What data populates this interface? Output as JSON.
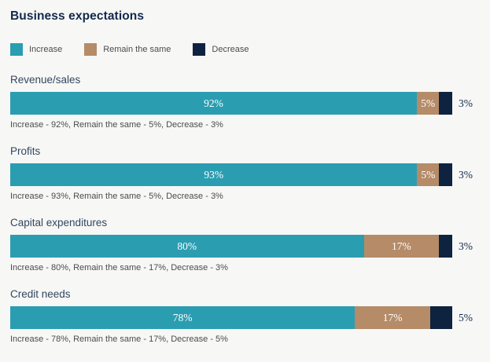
{
  "title": "Business expectations",
  "colors": {
    "background": "#f7f7f6",
    "heading": "#13294b",
    "category": "#33475e",
    "muted": "#4c4c4c",
    "increase": "#2b9db1",
    "remain": "#b58b68",
    "decrease": "#0d2340",
    "bar_label": "#ffffff"
  },
  "legend": [
    {
      "label": "Increase",
      "key": "increase"
    },
    {
      "label": "Remain the same",
      "key": "remain"
    },
    {
      "label": "Decrease",
      "key": "decrease"
    }
  ],
  "chart_data": {
    "type": "bar",
    "orientation": "horizontal",
    "stacked": true,
    "unit": "%",
    "x_range": [
      0,
      100
    ],
    "title": "Business expectations",
    "legend_position": "top",
    "grid": false,
    "value_labels": "increase and remain labels inside segments, decrease label outside right of bar",
    "categories": [
      "Revenue/sales",
      "Profits",
      "Capital expenditures",
      "Credit needs"
    ],
    "series": [
      {
        "name": "Increase",
        "values": [
          92,
          93,
          80,
          78
        ]
      },
      {
        "name": "Remain the same",
        "values": [
          5,
          5,
          17,
          17
        ]
      },
      {
        "name": "Decrease",
        "values": [
          3,
          3,
          3,
          5
        ]
      }
    ],
    "captions": [
      "Increase - 92%, Remain the same - 5%, Decrease - 3%",
      "Increase - 93%, Remain the same - 5%, Decrease - 3%",
      "Increase - 80%, Remain the same - 17%, Decrease - 3%",
      "Increase - 78%, Remain the same - 17%, Decrease - 5%"
    ]
  }
}
